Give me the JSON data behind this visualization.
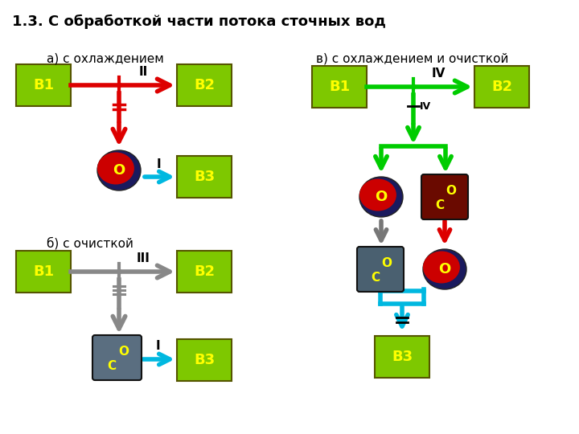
{
  "title": "1.3. С обработкой части потока сточных вод",
  "label_a": "а) с охлаждением",
  "label_b": "б) с очисткой",
  "label_v": "в) с охлаждением и очисткой",
  "green_box": "#7ec800",
  "yellow_text": "#ffff00",
  "red_arrow": "#dd0000",
  "cyan_arrow": "#00b8e0",
  "green_arrow": "#00cc00",
  "gray_arrow": "#888888"
}
